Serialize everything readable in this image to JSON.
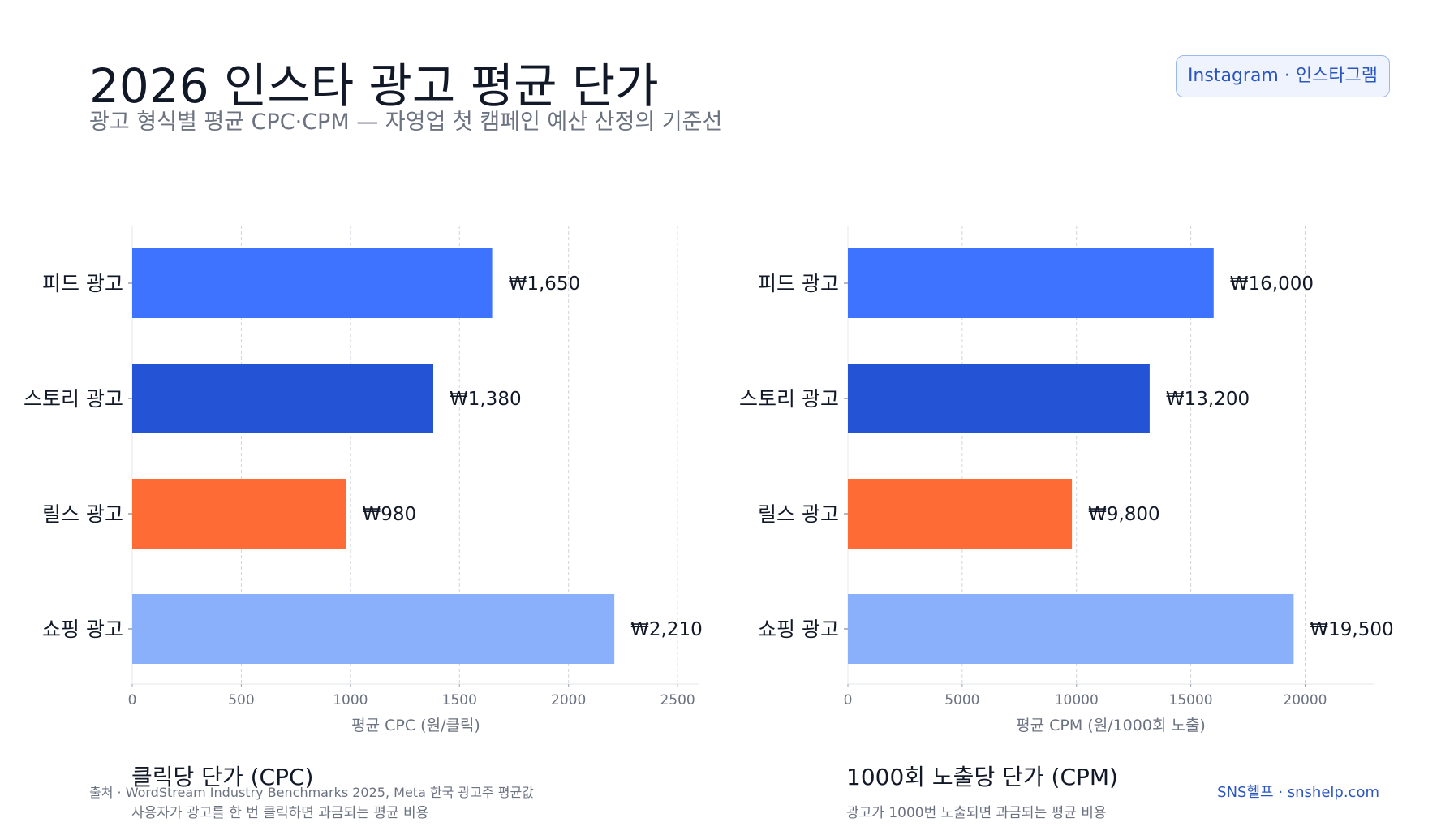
{
  "header": {
    "title": "2026 인스타 광고 평균 단가",
    "subtitle": "광고 형식별 평균 CPC·CPM — 자영업 첫 캠페인 예산 산정의 기준선",
    "badge": "Instagram · 인스타그램"
  },
  "footer": {
    "source": "출처 · WordStream Industry Benchmarks 2025, Meta 한국 광고주 평균값",
    "brand": "SNS헬프 · snshelp.com"
  },
  "chart_data": [
    {
      "type": "bar",
      "orientation": "horizontal",
      "title": "클릭당 단가 (CPC)",
      "description": "사용자가 광고를 한 번 클릭하면 과금되는 평균 비용",
      "xlabel": "평균 CPC (원/클릭)",
      "categories": [
        "피드 광고",
        "스토리 광고",
        "릴스 광고",
        "쇼핑 광고"
      ],
      "values": [
        1650,
        1380,
        980,
        2210
      ],
      "value_labels": [
        "₩1,650",
        "₩1,380",
        "₩980",
        "₩2,210"
      ],
      "colors": [
        "#3d73ff",
        "#2553d6",
        "#ff6b35",
        "#8ab0fb"
      ],
      "xlim": [
        0,
        2600
      ],
      "xticks": [
        0,
        500,
        1000,
        1500,
        2000,
        2500
      ],
      "grid": true
    },
    {
      "type": "bar",
      "orientation": "horizontal",
      "title": "1000회 노출당 단가 (CPM)",
      "description": "광고가 1000번 노출되면 과금되는 평균 비용",
      "xlabel": "평균 CPM (원/1000회 노출)",
      "categories": [
        "피드 광고",
        "스토리 광고",
        "릴스 광고",
        "쇼핑 광고"
      ],
      "values": [
        16000,
        13200,
        9800,
        19500
      ],
      "value_labels": [
        "₩16,000",
        "₩13,200",
        "₩9,800",
        "₩19,500"
      ],
      "colors": [
        "#3d73ff",
        "#2553d6",
        "#ff6b35",
        "#8ab0fb"
      ],
      "xlim": [
        0,
        23000
      ],
      "xticks": [
        0,
        5000,
        10000,
        15000,
        20000
      ],
      "grid": true
    }
  ]
}
